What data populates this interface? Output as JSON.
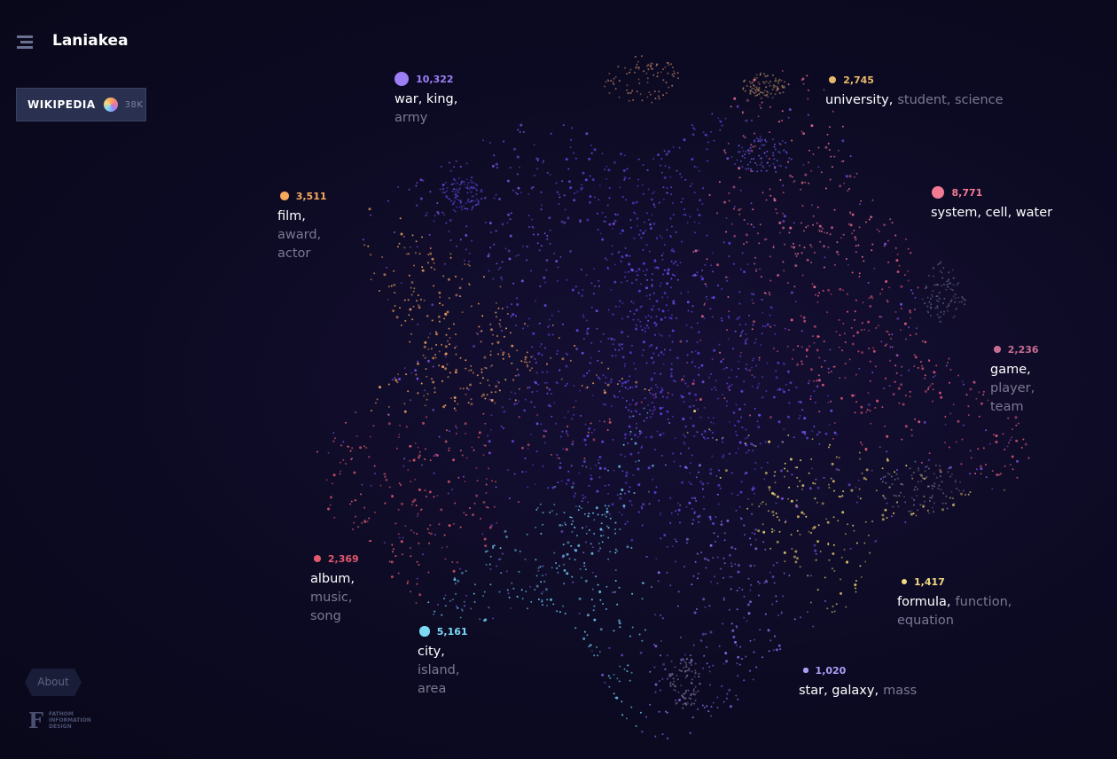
{
  "header": {
    "title": "Laniakea"
  },
  "dataset": {
    "label": "WIKIPEDIA",
    "count": "38K"
  },
  "clusters": [
    {
      "count": "10,322",
      "color": "#9c7ff6",
      "lines": [
        [
          {
            "text": "war, king,",
            "muted": false
          }
        ],
        [
          {
            "text": "army",
            "muted": true
          }
        ]
      ]
    },
    {
      "count": "2,745",
      "color": "#e9b96b",
      "lines": [
        [
          {
            "text": "university,",
            "muted": false
          },
          {
            "text": "student, science",
            "muted": true
          }
        ]
      ]
    },
    {
      "count": "3,511",
      "color": "#f6a95c",
      "lines": [
        [
          {
            "text": "film,",
            "muted": false
          }
        ],
        [
          {
            "text": "award,",
            "muted": true
          }
        ],
        [
          {
            "text": "actor",
            "muted": true
          }
        ]
      ]
    },
    {
      "count": "8,771",
      "color": "#f27a92",
      "lines": [
        [
          {
            "text": "system, cell, water",
            "muted": false
          }
        ]
      ]
    },
    {
      "count": "2,236",
      "color": "#c96c93",
      "lines": [
        [
          {
            "text": "game,",
            "muted": false
          }
        ],
        [
          {
            "text": "player,",
            "muted": true
          }
        ],
        [
          {
            "text": "team",
            "muted": true
          }
        ]
      ]
    },
    {
      "count": "2,369",
      "color": "#e2586c",
      "lines": [
        [
          {
            "text": "album,",
            "muted": false
          }
        ],
        [
          {
            "text": "music,",
            "muted": true
          }
        ],
        [
          {
            "text": "song",
            "muted": true
          }
        ]
      ]
    },
    {
      "count": "5,161",
      "color": "#7cdaf6",
      "lines": [
        [
          {
            "text": "city,",
            "muted": false
          }
        ],
        [
          {
            "text": "island,",
            "muted": true
          }
        ],
        [
          {
            "text": "area",
            "muted": true
          }
        ]
      ]
    },
    {
      "count": "1,417",
      "color": "#f3da82",
      "lines": [
        [
          {
            "text": "formula,",
            "muted": false
          },
          {
            "text": "function,",
            "muted": true
          }
        ],
        [
          {
            "text": "equation",
            "muted": true
          }
        ]
      ]
    },
    {
      "count": "1,020",
      "color": "#aa9ef6",
      "lines": [
        [
          {
            "text": "star, galaxy,",
            "muted": false
          },
          {
            "text": "mass",
            "muted": true
          }
        ]
      ]
    }
  ],
  "about": "About",
  "footer": {
    "logo": "F",
    "lines": [
      "FATHOM",
      "INFORMATION",
      "DESIGN"
    ]
  }
}
